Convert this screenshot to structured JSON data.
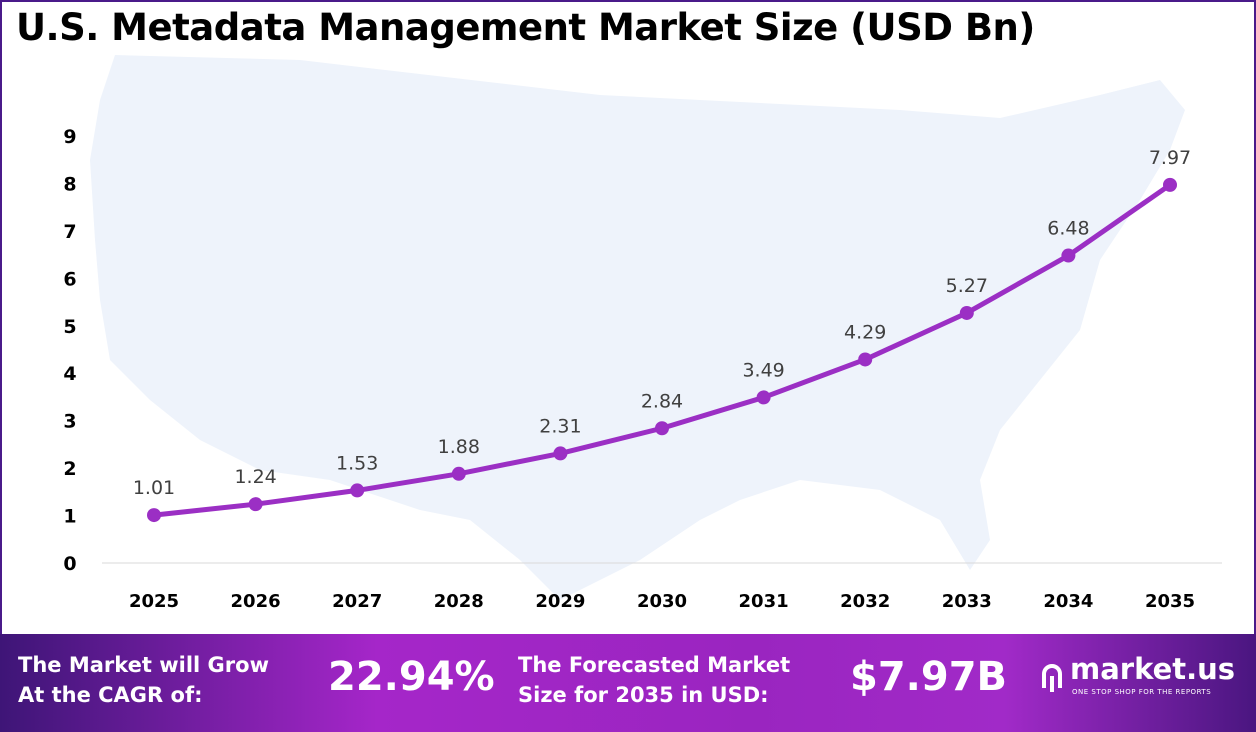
{
  "chart_data": {
    "type": "line",
    "title": "U.S. Metadata Management Market Size (USD Bn)",
    "categories": [
      "2025",
      "2026",
      "2027",
      "2028",
      "2029",
      "2030",
      "2031",
      "2032",
      "2033",
      "2034",
      "2035"
    ],
    "values": [
      1.01,
      1.24,
      1.53,
      1.88,
      2.31,
      2.84,
      3.49,
      4.29,
      5.27,
      6.48,
      7.97
    ],
    "data_labels": [
      "1.01",
      "1.24",
      "1.53",
      "1.88",
      "2.31",
      "2.84",
      "3.49",
      "4.29",
      "5.27",
      "6.48",
      "7.97"
    ],
    "y_ticks": [
      "0",
      "1",
      "2",
      "3",
      "4",
      "5",
      "6",
      "7",
      "8",
      "9"
    ],
    "ylim": [
      0,
      9
    ],
    "grid": false,
    "line_color": "#9b2fc4",
    "background": "U.S. map silhouette"
  },
  "footer": {
    "cagr_label_1": "The Market will Grow",
    "cagr_label_2": "At the CAGR of:",
    "cagr_value": "22.94%",
    "forecast_label_1": "The Forecasted Market",
    "forecast_label_2": "Size for 2035 in USD:",
    "forecast_value": "$7.97B",
    "logo_text": "market.us",
    "logo_tagline": "ONE STOP SHOP FOR THE REPORTS"
  }
}
